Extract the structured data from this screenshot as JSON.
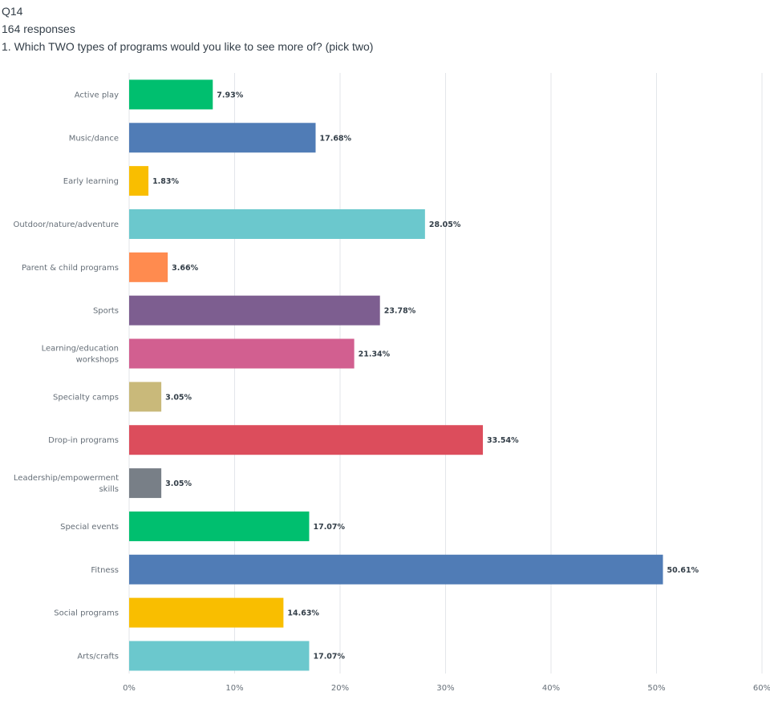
{
  "question": {
    "id": "Q14",
    "responses": "164 responses",
    "text": "1. Which TWO types of programs would you like to see more of? (pick two)"
  },
  "chart_data": {
    "type": "bar",
    "orientation": "horizontal",
    "title": "",
    "xlabel": "",
    "ylabel": "",
    "xlim": [
      0,
      60
    ],
    "ticks": [
      "0%",
      "10%",
      "20%",
      "30%",
      "40%",
      "50%",
      "60%"
    ],
    "grid": true,
    "categories": [
      {
        "lines": [
          "Active play"
        ],
        "value": 7.93,
        "label": "7.93%",
        "color": "#00bf6f"
      },
      {
        "lines": [
          "Music/dance"
        ],
        "value": 17.68,
        "label": "17.68%",
        "color": "#507cb6"
      },
      {
        "lines": [
          "Early learning"
        ],
        "value": 1.83,
        "label": "1.83%",
        "color": "#f9be00"
      },
      {
        "lines": [
          "Outdoor/nature/adventure"
        ],
        "value": 28.05,
        "label": "28.05%",
        "color": "#6bc8cd"
      },
      {
        "lines": [
          "Parent & child programs"
        ],
        "value": 3.66,
        "label": "3.66%",
        "color": "#ff8b4f"
      },
      {
        "lines": [
          "Sports"
        ],
        "value": 23.78,
        "label": "23.78%",
        "color": "#7d5e90"
      },
      {
        "lines": [
          "Learning/education",
          "workshops"
        ],
        "value": 21.34,
        "label": "21.34%",
        "color": "#d25f90"
      },
      {
        "lines": [
          "Specialty camps"
        ],
        "value": 3.05,
        "label": "3.05%",
        "color": "#c9b97a"
      },
      {
        "lines": [
          "Drop-in programs"
        ],
        "value": 33.54,
        "label": "33.54%",
        "color": "#dc4d5c"
      },
      {
        "lines": [
          "Leadership/empowerment",
          "skills"
        ],
        "value": 3.05,
        "label": "3.05%",
        "color": "#787f87"
      },
      {
        "lines": [
          "Special events"
        ],
        "value": 17.07,
        "label": "17.07%",
        "color": "#00bf6f"
      },
      {
        "lines": [
          "Fitness"
        ],
        "value": 50.61,
        "label": "50.61%",
        "color": "#507cb6"
      },
      {
        "lines": [
          "Social programs"
        ],
        "value": 14.63,
        "label": "14.63%",
        "color": "#f9be00"
      },
      {
        "lines": [
          "Arts/crafts"
        ],
        "value": 17.07,
        "label": "17.07%",
        "color": "#6bc8cd"
      }
    ]
  }
}
